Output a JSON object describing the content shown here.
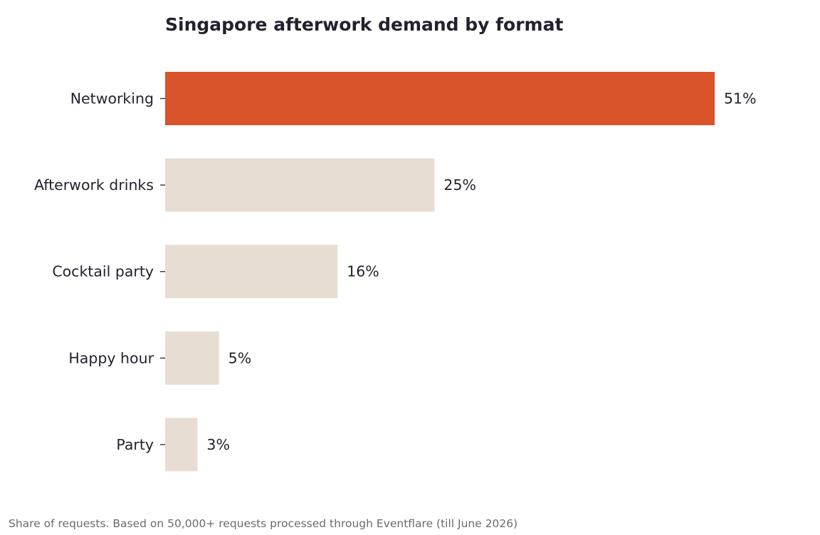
{
  "chart_data": {
    "type": "bar",
    "orientation": "horizontal",
    "title": "Singapore afterwork demand by format",
    "categories": [
      "Networking",
      "Afterwork drinks",
      "Cocktail party",
      "Happy hour",
      "Party"
    ],
    "values": [
      51,
      25,
      16,
      5,
      3
    ],
    "value_labels": [
      "51%",
      "25%",
      "16%",
      "5%",
      "3%"
    ],
    "unit": "%",
    "highlight_index": 0,
    "colors": {
      "highlight": "#d9532b",
      "default": "#e8ddd3",
      "text": "#22222e",
      "footnote": "#6b6b6b"
    },
    "xlim": [
      0,
      51
    ],
    "grid": false,
    "xlabel": "",
    "ylabel": ""
  },
  "footnote": "Share of requests. Based on 50,000+ requests processed through Eventflare (till June 2026)"
}
